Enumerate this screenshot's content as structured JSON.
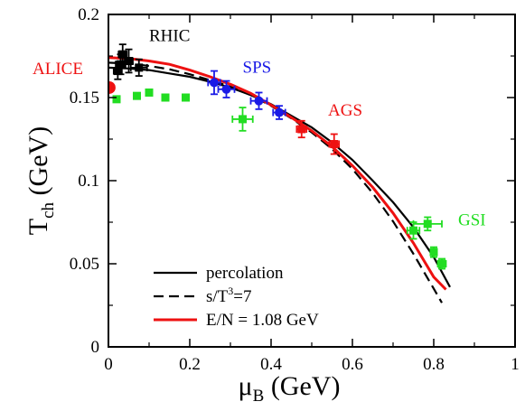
{
  "chart_data": {
    "type": "scatter",
    "title": "",
    "xlabel": {
      "main": "μ",
      "sub": "B",
      "unit": " (GeV)"
    },
    "ylabel": {
      "main": "T",
      "sub": "ch",
      "unit": " (GeV)"
    },
    "xlim": [
      0,
      1
    ],
    "ylim": [
      0,
      0.2
    ],
    "x_ticks": [
      0,
      0.2,
      0.4,
      0.6,
      0.8,
      1
    ],
    "x_tick_labels": [
      "0",
      "0.2",
      "0.4",
      "0.6",
      "0.8",
      "1"
    ],
    "y_ticks": [
      0,
      0.05,
      0.1,
      0.15,
      0.2
    ],
    "y_tick_labels": [
      "0",
      "0.05",
      "0.1",
      "0.15",
      "0.2"
    ],
    "grid": false,
    "legend_position": "bottom-left",
    "annotations": [
      {
        "text": "RHIC",
        "x": 0.1,
        "y": 0.184,
        "color": "#000000"
      },
      {
        "text": "ALICE",
        "x": -0.2,
        "y": 0.164,
        "color": "#ee1111"
      },
      {
        "text": "SPS",
        "x": 0.33,
        "y": 0.165,
        "color": "#1a1ae6"
      },
      {
        "text": "AGS",
        "x": 0.54,
        "y": 0.139,
        "color": "#ee1111"
      },
      {
        "text": "GSI",
        "x": 0.86,
        "y": 0.073,
        "color": "#22dd22"
      }
    ],
    "curves": [
      {
        "name": "percolation",
        "style": "solid",
        "color": "#000000",
        "x": [
          0,
          0.05,
          0.1,
          0.15,
          0.2,
          0.25,
          0.3,
          0.35,
          0.4,
          0.45,
          0.5,
          0.55,
          0.6,
          0.65,
          0.7,
          0.75,
          0.8,
          0.84
        ],
        "y": [
          0.168,
          0.1675,
          0.1665,
          0.1645,
          0.1625,
          0.1595,
          0.156,
          0.1515,
          0.146,
          0.139,
          0.132,
          0.123,
          0.1125,
          0.1,
          0.087,
          0.072,
          0.054,
          0.036
        ]
      },
      {
        "name": "s/T³=7",
        "legend_text": {
          "main": "s/T",
          "sup": "3",
          "rest": "=7"
        },
        "style": "dashed",
        "color": "#000000",
        "x": [
          0,
          0.05,
          0.1,
          0.15,
          0.2,
          0.25,
          0.3,
          0.35,
          0.4,
          0.45,
          0.5,
          0.55,
          0.6,
          0.65,
          0.7,
          0.75,
          0.8,
          0.82
        ],
        "y": [
          0.171,
          0.1705,
          0.169,
          0.167,
          0.164,
          0.1605,
          0.1565,
          0.1515,
          0.145,
          0.1375,
          0.129,
          0.119,
          0.107,
          0.0925,
          0.0755,
          0.056,
          0.035,
          0.0265
        ]
      },
      {
        "name": "E/N = 1.08 GeV",
        "style": "solid",
        "color": "#ee1111",
        "x": [
          0,
          0.05,
          0.1,
          0.15,
          0.2,
          0.25,
          0.3,
          0.35,
          0.4,
          0.45,
          0.5,
          0.55,
          0.6,
          0.65,
          0.7,
          0.75,
          0.8,
          0.83
        ],
        "y": [
          0.174,
          0.1735,
          0.172,
          0.17,
          0.1665,
          0.1625,
          0.158,
          0.1525,
          0.1455,
          0.138,
          0.13,
          0.1205,
          0.109,
          0.096,
          0.0805,
          0.0625,
          0.042,
          0.0345
        ]
      }
    ],
    "series": [
      {
        "name": "RHIC",
        "color": "#000000",
        "marker": "square",
        "points": [
          {
            "x": 0.023,
            "y": 0.166,
            "ex": 0.01,
            "ey": 0.005
          },
          {
            "x": 0.03,
            "y": 0.17,
            "ex": 0.012,
            "ey": 0.006
          },
          {
            "x": 0.035,
            "y": 0.176,
            "ex": 0.01,
            "ey": 0.006
          },
          {
            "x": 0.05,
            "y": 0.172,
            "ex": 0.01,
            "ey": 0.007
          },
          {
            "x": 0.075,
            "y": 0.168,
            "ex": 0.02,
            "ey": 0.005
          }
        ]
      },
      {
        "name": "ALICE",
        "color": "#ee1111",
        "marker": "circle",
        "points": [
          {
            "x": 0.002,
            "y": 0.156,
            "ex": 0,
            "ey": 0
          }
        ]
      },
      {
        "name": "SPS",
        "color": "#1a1ae6",
        "marker": "circle",
        "points": [
          {
            "x": 0.26,
            "y": 0.159,
            "ex": 0.015,
            "ey": 0.007
          },
          {
            "x": 0.29,
            "y": 0.155,
            "ex": 0.02,
            "ey": 0.005
          },
          {
            "x": 0.37,
            "y": 0.148,
            "ex": 0.02,
            "ey": 0.005
          },
          {
            "x": 0.42,
            "y": 0.141,
            "ex": 0.015,
            "ey": 0.004
          }
        ]
      },
      {
        "name": "AGS",
        "color": "#ee1111",
        "marker": "square",
        "points": [
          {
            "x": 0.475,
            "y": 0.131,
            "ex": 0.012,
            "ey": 0.005
          },
          {
            "x": 0.555,
            "y": 0.122,
            "ex": 0.012,
            "ey": 0.006
          }
        ]
      },
      {
        "name": "Green",
        "color": "#22dd22",
        "marker": "square",
        "points": [
          {
            "x": 0.02,
            "y": 0.149,
            "ex": 0.006,
            "ey": 0
          },
          {
            "x": 0.07,
            "y": 0.151,
            "ex": 0.006,
            "ey": 0
          },
          {
            "x": 0.1,
            "y": 0.153,
            "ex": 0.006,
            "ey": 0
          },
          {
            "x": 0.14,
            "y": 0.15,
            "ex": 0.006,
            "ey": 0
          },
          {
            "x": 0.19,
            "y": 0.15,
            "ex": 0.006,
            "ey": 0
          },
          {
            "x": 0.33,
            "y": 0.137,
            "ex": 0.025,
            "ey": 0.007
          },
          {
            "x": 0.75,
            "y": 0.07,
            "ex": 0.015,
            "ey": 0.005
          },
          {
            "x": 0.785,
            "y": 0.074,
            "ex": 0.035,
            "ey": 0.004
          },
          {
            "x": 0.8,
            "y": 0.057,
            "ex": 0.005,
            "ey": 0.003
          },
          {
            "x": 0.82,
            "y": 0.05,
            "ex": 0.01,
            "ey": 0.003
          }
        ]
      }
    ]
  }
}
